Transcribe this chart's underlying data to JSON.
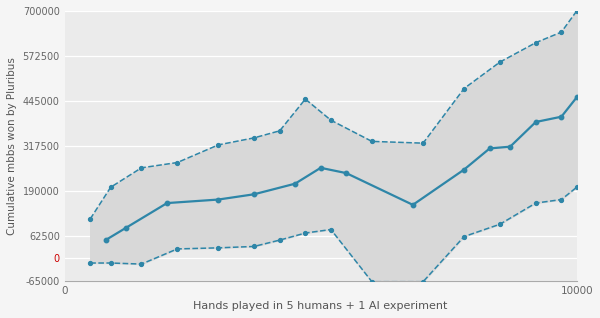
{
  "title": "",
  "xlabel": "Hands played in 5 humans + 1 AI experiment",
  "ylabel": "Cumulative mbbs won by Pluribus",
  "bg_color": "#f5f5f5",
  "plot_bg_color": "#ebebeb",
  "line_color": "#2e86a8",
  "fill_color": "#e0e0e0",
  "zero_label_color": "#cc0000",
  "ylim": [
    -65000,
    700000
  ],
  "xlim": [
    0,
    10000
  ],
  "yticks": [
    -65000,
    0,
    62500,
    190000,
    317500,
    445000,
    572500,
    700000
  ],
  "ytick_labels": [
    "-65000",
    "0",
    "62500",
    "190000",
    "317500",
    "445000",
    "572500",
    "700000"
  ],
  "xticks": [
    0,
    10000
  ],
  "xtick_labels": [
    "0",
    "10000"
  ],
  "main_x": [
    800,
    1200,
    2000,
    3000,
    3700,
    4500,
    5000,
    5500,
    6800,
    7800,
    8300,
    8700,
    9200,
    9700,
    10000
  ],
  "main_y": [
    50000,
    85000,
    155000,
    165000,
    180000,
    210000,
    255000,
    240000,
    150000,
    250000,
    310000,
    315000,
    385000,
    400000,
    455000
  ],
  "upper_x": [
    500,
    900,
    1500,
    2200,
    3000,
    3700,
    4200,
    4700,
    5200,
    6000,
    7000,
    7800,
    8500,
    9200,
    9700,
    10000
  ],
  "upper_y": [
    110000,
    200000,
    255000,
    270000,
    320000,
    340000,
    360000,
    450000,
    390000,
    330000,
    325000,
    480000,
    555000,
    610000,
    640000,
    700000
  ],
  "lower_x": [
    500,
    900,
    1500,
    2200,
    3000,
    3700,
    4200,
    4700,
    5200,
    6000,
    7000,
    7800,
    8500,
    9200,
    9700,
    10000
  ],
  "lower_y": [
    -15000,
    -15000,
    -18000,
    25000,
    28000,
    32000,
    50000,
    70000,
    80000,
    -68000,
    -68000,
    60000,
    95000,
    155000,
    165000,
    200000
  ]
}
